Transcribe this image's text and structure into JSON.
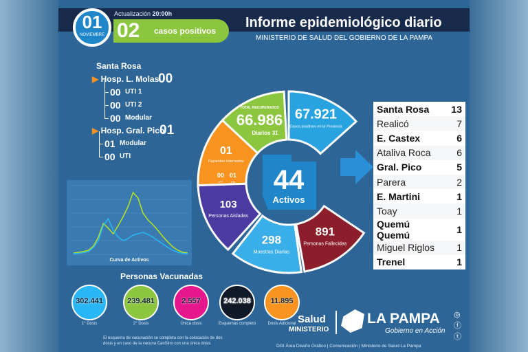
{
  "header": {
    "day": "01",
    "month": "NOVIEMBRE",
    "update_label": "Actualización",
    "update_time": "20:00h",
    "new_cases": "02",
    "new_cases_label": "casos positivos",
    "title": "Informe epidemiológico diario",
    "subtitle": "MINISTERIO DE SALUD DEL GOBIERNO DE LA PAMPA"
  },
  "hospitals": {
    "city": "Santa Rosa",
    "h1": {
      "name": "Hosp. L. Molas",
      "total": "00",
      "items": [
        {
          "value": "00",
          "label": "UTI 1"
        },
        {
          "value": "00",
          "label": "UTI 2"
        },
        {
          "value": "00",
          "label": "Modular"
        }
      ]
    },
    "h2": {
      "name": "Hosp. Gral. Pico",
      "total": "01",
      "items": [
        {
          "value": "01",
          "label": "Modular"
        },
        {
          "value": "00",
          "label": "UTI"
        }
      ]
    }
  },
  "wheel": {
    "active": {
      "value": "44",
      "label": "Activos"
    },
    "recovered": {
      "label": "TOTAL RECUPERADOS",
      "value": "66.986",
      "sub": "Diarios 31"
    },
    "positives": {
      "value": "67.921",
      "label": "Casos positivos en la Provincia"
    },
    "deaths": {
      "value": "891",
      "label": "Personas Fallecidas"
    },
    "samples": {
      "value": "298",
      "label": "Muestras Diarias"
    },
    "isolated": {
      "value": "103",
      "label": "Personas Aisladas"
    },
    "hospitalized": {
      "value": "01",
      "label": "Pacientes Internados",
      "uti": "00",
      "uti_label": "UTI",
      "cm": "01",
      "cm_label": "CM"
    }
  },
  "localities": [
    [
      "Santa Rosa",
      "13"
    ],
    [
      "Realicó",
      "7"
    ],
    [
      "E. Castex",
      "6"
    ],
    [
      "Ataliva Roca",
      "6"
    ],
    [
      "Gral. Pico",
      "5"
    ],
    [
      "Parera",
      "2"
    ],
    [
      "E. Martini",
      "1"
    ],
    [
      "Toay",
      "1"
    ],
    [
      "Quemú Quemú",
      "1"
    ],
    [
      "Miguel Riglos",
      "1"
    ],
    [
      "Trenel",
      "1"
    ]
  ],
  "curve": {
    "title": "Curva de Activos",
    "ylim": [
      0,
      1000
    ],
    "series": [
      {
        "color": "#b5e61d",
        "values": [
          20,
          30,
          40,
          60,
          120,
          250,
          450,
          380,
          300,
          420,
          550,
          700,
          900,
          820,
          600,
          500,
          430,
          350,
          260,
          180,
          110,
          60,
          30,
          20
        ]
      },
      {
        "color": "#29b6f6",
        "values": [
          10,
          15,
          25,
          40,
          100,
          200,
          420,
          520,
          350,
          250,
          200,
          230,
          280,
          300,
          320,
          290,
          250,
          200,
          150,
          100,
          60,
          30,
          15,
          10
        ]
      }
    ]
  },
  "vaccines": {
    "title": "Personas Vacunadas",
    "items": [
      {
        "value": "302.441",
        "label": "1° Dosis",
        "color": "#29b6f6"
      },
      {
        "value": "239.481",
        "label": "2° Dosis",
        "color": "#8cc63f"
      },
      {
        "value": "2.557",
        "label": "Única dosis",
        "color": "#e6178c"
      },
      {
        "value": "242.038",
        "label": "Esquemas completo",
        "color": "#111827"
      },
      {
        "value": "11.895",
        "label": "Dosis Adicional",
        "color": "#f7931e"
      }
    ],
    "note": "El esquema de vacunación se completa con la colocación de dos dosis y en caso de la vacuna CanSino con una única dosis"
  },
  "footer": {
    "salud": "Salud",
    "ministerio": "MINISTERIO",
    "brand": "LA PAMPA",
    "tagline": "Gobierno en Acción",
    "credits": "DGI Área Diseño Gráfico | Comunicación | Ministerio de Salud La Pampa"
  }
}
